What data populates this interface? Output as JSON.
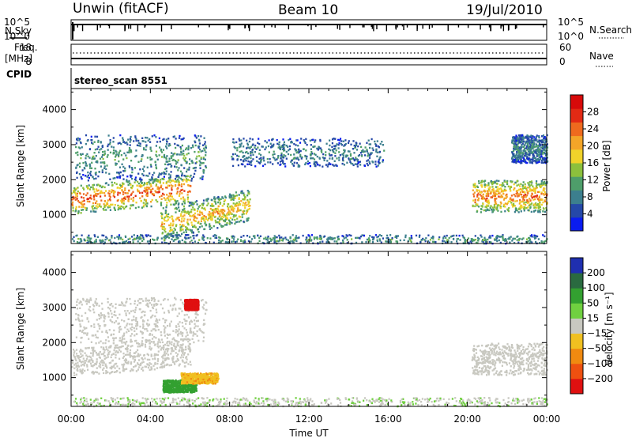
{
  "header": {
    "station": "Unwin (fitACF)",
    "beam": "Beam 10",
    "date": "19/Jul/2010"
  },
  "top_panels": {
    "nsky": {
      "label": "N.Sky",
      "ticks": [
        "10^5",
        "10^0"
      ]
    },
    "nsearch": {
      "label": "N.Search",
      "ticks": [
        "10^5",
        "10^0"
      ]
    },
    "freq": {
      "label_line1": "Freq.",
      "label_line2": "[MHz]",
      "ticks": [
        "18",
        "8"
      ]
    },
    "nave": {
      "label": "Nave",
      "ticks": [
        "60",
        "0"
      ]
    },
    "cpid": {
      "label": "CPID",
      "value": "stereo_scan 8551"
    }
  },
  "chart_data": [
    {
      "type": "heatmap",
      "title": "",
      "xlabel": "Time UT",
      "ylabel": "Slant Range [km]",
      "xlim_hours": [
        0,
        24
      ],
      "x_ticks": [
        "00:00",
        "04:00",
        "08:00",
        "12:00",
        "16:00",
        "20:00",
        "00:00"
      ],
      "ylim_km": [
        180,
        4600
      ],
      "y_ticks": [
        1000,
        2000,
        3000,
        4000
      ],
      "colorbar": {
        "label": "Power [dB]",
        "ticks": [
          "4",
          "8",
          "12",
          "16",
          "20",
          "24",
          "28"
        ],
        "colors": [
          "#0a1cf0",
          "#2548a8",
          "#3c7f8e",
          "#4e9e6a",
          "#8cc03c",
          "#f0d22a",
          "#f3a528",
          "#ee6a1e",
          "#e22a14",
          "#d80a0a"
        ]
      },
      "regions": [
        {
          "name": "main-band-early",
          "t": [
            0.0,
            6.0
          ],
          "range_km": [
            1200,
            2000
          ],
          "peak_db": 26
        },
        {
          "name": "upper-patch-early",
          "t": [
            0.2,
            6.8
          ],
          "range_km": [
            2000,
            3300
          ],
          "peak_db": 10
        },
        {
          "name": "rising-echo",
          "t": [
            4.5,
            9.0
          ],
          "range_km": [
            550,
            1450
          ],
          "peak_db": 20
        },
        {
          "name": "upper-patch-midday",
          "t": [
            8.0,
            15.8
          ],
          "range_km": [
            2400,
            3200
          ],
          "peak_db": 8
        },
        {
          "name": "near-range-ground",
          "t": [
            0.0,
            24.0
          ],
          "range_km": [
            180,
            450
          ],
          "peak_db": 10
        },
        {
          "name": "main-band-late",
          "t": [
            20.2,
            24.0
          ],
          "range_km": [
            1100,
            2000
          ],
          "peak_db": 24
        },
        {
          "name": "upper-patch-late",
          "t": [
            22.2,
            24.0
          ],
          "range_km": [
            2500,
            3300
          ],
          "peak_db": 8
        }
      ]
    },
    {
      "type": "heatmap",
      "title": "",
      "xlabel": "Time UT",
      "ylabel": "Slant Range [km]",
      "xlim_hours": [
        0,
        24
      ],
      "x_ticks": [
        "00:00",
        "04:00",
        "08:00",
        "12:00",
        "16:00",
        "20:00",
        "00:00"
      ],
      "ylim_km": [
        180,
        4600
      ],
      "y_ticks": [
        1000,
        2000,
        3000,
        4000
      ],
      "colorbar": {
        "label": "Velocity [m s⁻¹]",
        "ticks": [
          "200",
          "100",
          "50",
          "15",
          "−15",
          "−50",
          "−100",
          "−200"
        ],
        "colors": [
          "#1f2fb0",
          "#2a6a40",
          "#33a030",
          "#70d040",
          "#c8c8c0",
          "#f0c020",
          "#f08a10",
          "#ee5010",
          "#e01010"
        ]
      },
      "regions": [
        {
          "name": "main-band-early",
          "t": [
            0.0,
            6.0
          ],
          "range_km": [
            1200,
            2000
          ],
          "velocity": 0
        },
        {
          "name": "upper-patch-early",
          "t": [
            0.2,
            6.8
          ],
          "range_km": [
            2000,
            3300
          ],
          "velocity": 0
        },
        {
          "name": "red-patch",
          "t": [
            5.7,
            6.4
          ],
          "range_km": [
            2950,
            3250
          ],
          "velocity": -200
        },
        {
          "name": "green-echo",
          "t": [
            4.6,
            6.3
          ],
          "range_km": [
            600,
            950
          ],
          "velocity": 60
        },
        {
          "name": "orange-echo",
          "t": [
            5.5,
            7.4
          ],
          "range_km": [
            850,
            1150
          ],
          "velocity": -40
        },
        {
          "name": "near-range-ground",
          "t": [
            0.0,
            24.0
          ],
          "range_km": [
            180,
            450
          ],
          "velocity": 10
        },
        {
          "name": "main-band-late",
          "t": [
            20.2,
            24.0
          ],
          "range_km": [
            1100,
            2000
          ],
          "velocity": 0
        }
      ]
    }
  ]
}
